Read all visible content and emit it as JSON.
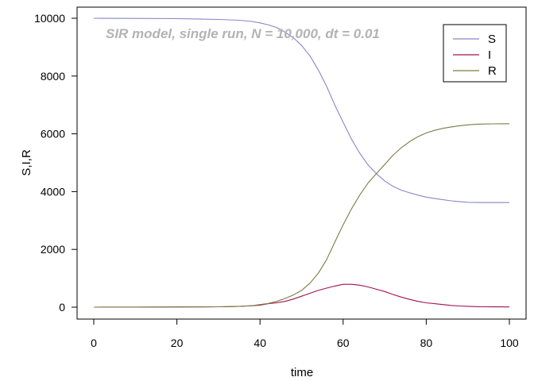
{
  "chart_data": {
    "type": "line",
    "annotation": "SIR model, single run, N = 10,000, dt = 0.01",
    "xlabel": "time",
    "ylabel": "S,I,R",
    "xlim": [
      0,
      100
    ],
    "ylim": [
      0,
      10000
    ],
    "xticks": [
      0,
      20,
      40,
      60,
      80,
      100
    ],
    "yticks": [
      0,
      2000,
      4000,
      6000,
      8000,
      10000
    ],
    "grid": false,
    "legend_position": "top-right",
    "series": [
      {
        "name": "S",
        "color": "#8a84c8",
        "x": [
          0,
          10,
          20,
          25,
          30,
          35,
          38,
          40,
          42,
          44,
          46,
          48,
          50,
          52,
          54,
          56,
          58,
          60,
          62,
          64,
          66,
          68,
          70,
          72,
          74,
          76,
          78,
          80,
          82,
          84,
          86,
          88,
          90,
          92,
          94,
          96,
          98,
          100
        ],
        "values": [
          9999,
          9995,
          9985,
          9975,
          9960,
          9930,
          9890,
          9840,
          9770,
          9680,
          9520,
          9330,
          9060,
          8700,
          8220,
          7650,
          7000,
          6400,
          5820,
          5330,
          4920,
          4620,
          4370,
          4180,
          4050,
          3960,
          3880,
          3810,
          3760,
          3720,
          3680,
          3650,
          3630,
          3625,
          3622,
          3620,
          3620,
          3620
        ]
      },
      {
        "name": "I",
        "color": "#a0124e",
        "x": [
          0,
          10,
          14,
          20,
          25,
          30,
          33,
          35,
          38,
          40,
          42,
          44,
          46,
          48,
          50,
          52,
          54,
          56,
          58,
          60,
          62,
          64,
          66,
          68,
          70,
          72,
          74,
          76,
          78,
          80,
          82,
          84,
          86,
          88,
          90,
          92,
          94,
          96,
          98,
          100
        ],
        "values": [
          1,
          2,
          5,
          8,
          10,
          15,
          20,
          28,
          50,
          70,
          120,
          150,
          200,
          280,
          380,
          480,
          580,
          660,
          730,
          790,
          790,
          760,
          700,
          620,
          540,
          440,
          350,
          270,
          200,
          150,
          120,
          90,
          60,
          40,
          30,
          20,
          15,
          12,
          10,
          8
        ]
      },
      {
        "name": "R",
        "color": "#7c7c44",
        "x": [
          0,
          10,
          20,
          25,
          30,
          35,
          38,
          40,
          42,
          44,
          46,
          48,
          50,
          52,
          54,
          56,
          58,
          60,
          62,
          64,
          66,
          68,
          70,
          72,
          74,
          76,
          78,
          80,
          82,
          84,
          86,
          88,
          90,
          92,
          94,
          96,
          98,
          100
        ],
        "values": [
          0,
          2,
          5,
          8,
          15,
          30,
          50,
          90,
          130,
          200,
          300,
          420,
          580,
          830,
          1170,
          1640,
          2250,
          2850,
          3400,
          3880,
          4300,
          4620,
          4940,
          5260,
          5520,
          5730,
          5900,
          6030,
          6120,
          6190,
          6240,
          6280,
          6310,
          6330,
          6340,
          6345,
          6350,
          6350
        ]
      }
    ]
  }
}
